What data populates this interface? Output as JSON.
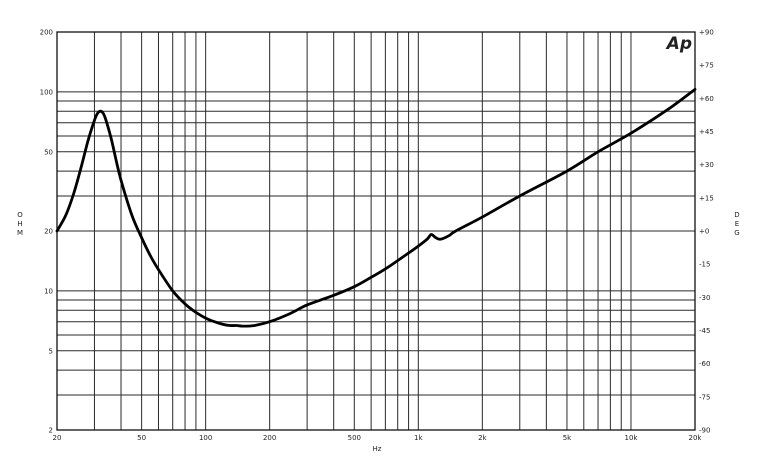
{
  "chart_data": {
    "type": "line",
    "xlabel": "Hz",
    "ylabel": "OHM",
    "y2label": "DEG",
    "x_scale": "log",
    "y_scale": "log",
    "xlim": [
      20,
      20000
    ],
    "ylim": [
      2,
      200
    ],
    "y2lim": [
      -90,
      90
    ],
    "x_ticks": [
      {
        "value": 20,
        "label": "20"
      },
      {
        "value": 50,
        "label": "50"
      },
      {
        "value": 100,
        "label": "100"
      },
      {
        "value": 200,
        "label": "200"
      },
      {
        "value": 500,
        "label": "500"
      },
      {
        "value": 1000,
        "label": "1k"
      },
      {
        "value": 2000,
        "label": "2k"
      },
      {
        "value": 5000,
        "label": "5k"
      },
      {
        "value": 10000,
        "label": "10k"
      },
      {
        "value": 20000,
        "label": "20k"
      }
    ],
    "x_minor_grid": [
      30,
      40,
      60,
      70,
      80,
      90,
      300,
      400,
      600,
      700,
      800,
      900,
      3000,
      4000,
      6000,
      7000,
      8000,
      9000
    ],
    "y_ticks": [
      {
        "value": 2,
        "label": "2"
      },
      {
        "value": 5,
        "label": "5"
      },
      {
        "value": 10,
        "label": "10"
      },
      {
        "value": 20,
        "label": "20"
      },
      {
        "value": 50,
        "label": "50"
      },
      {
        "value": 100,
        "label": "100"
      },
      {
        "value": 200,
        "label": "200"
      }
    ],
    "y_minor_grid": [
      3,
      4,
      6,
      7,
      8,
      9,
      30,
      40,
      60,
      70,
      80,
      90
    ],
    "y2_ticks": [
      "+90",
      "+75",
      "+60",
      "+45",
      "+30",
      "+15",
      "+0",
      "-15",
      "-30",
      "-45",
      "-60",
      "-75",
      "-90"
    ],
    "grid": true,
    "series": [
      {
        "x": [
          20,
          22,
          24,
          26,
          28,
          30,
          31,
          32,
          33,
          34,
          36,
          38,
          40,
          45,
          50,
          55,
          60,
          70,
          80,
          90,
          100,
          110,
          120,
          130,
          140,
          150,
          170,
          200,
          250,
          300,
          400,
          500,
          600,
          700,
          800,
          900,
          1000,
          1100,
          1150,
          1200,
          1250,
          1300,
          1400,
          1500,
          2000,
          3000,
          5000,
          7000,
          10000,
          15000,
          20000
        ],
        "y": [
          20,
          24,
          31,
          42,
          57,
          72,
          78,
          80,
          78,
          72,
          58,
          45,
          36,
          24,
          18.5,
          15,
          12.8,
          10,
          8.6,
          7.8,
          7.3,
          7.0,
          6.8,
          6.7,
          6.7,
          6.65,
          6.7,
          7.0,
          7.7,
          8.5,
          9.5,
          10.5,
          11.7,
          12.9,
          14.2,
          15.5,
          16.8,
          18.2,
          19.2,
          18.6,
          18.2,
          18.3,
          19.0,
          20.0,
          23.5,
          30,
          40,
          50,
          62,
          82,
          103
        ]
      }
    ],
    "logo": "Ap"
  }
}
